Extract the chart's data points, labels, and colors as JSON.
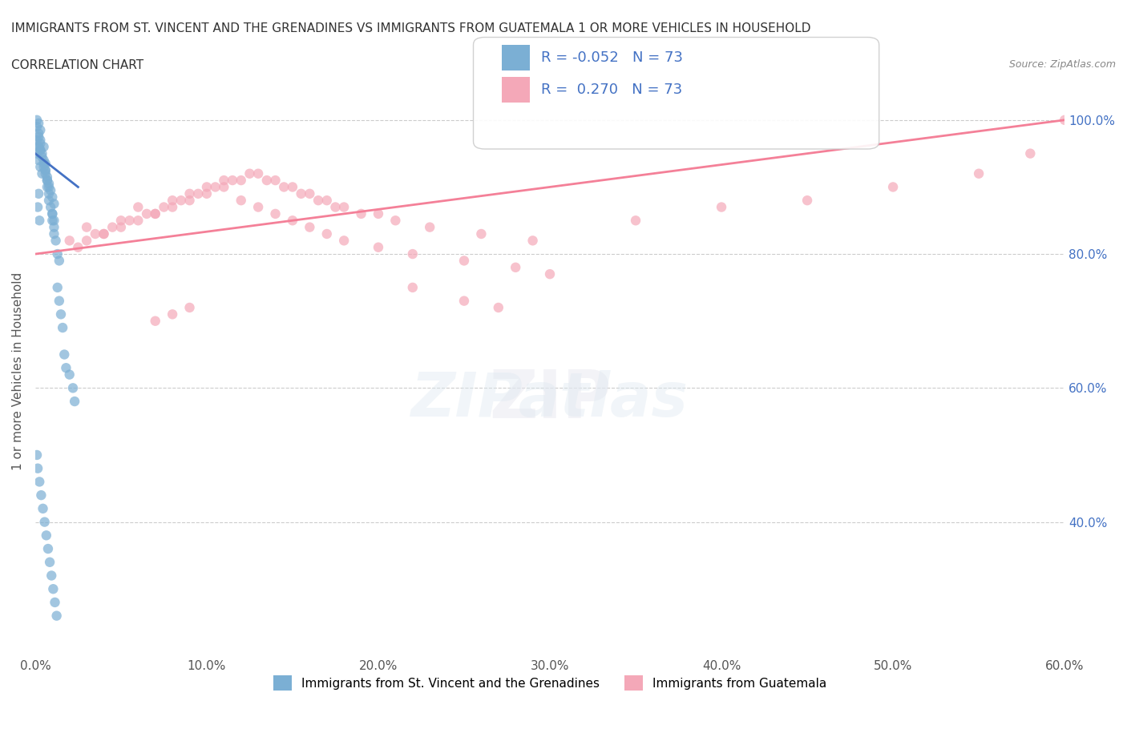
{
  "title_line1": "IMMIGRANTS FROM ST. VINCENT AND THE GRENADINES VS IMMIGRANTS FROM GUATEMALA 1 OR MORE VEHICLES IN HOUSEHOLD",
  "title_line2": "CORRELATION CHART",
  "source": "Source: ZipAtlas.com",
  "xlabel": "",
  "ylabel": "1 or more Vehicles in Household",
  "xlim": [
    0.0,
    60.0
  ],
  "ylim": [
    20.0,
    105.0
  ],
  "xticklabels": [
    "0.0%",
    "10.0%",
    "20.0%",
    "30.0%",
    "40.0%",
    "50.0%",
    "60.0%"
  ],
  "yticklabels_right": [
    "40.0%",
    "60.0%",
    "80.0%",
    "100.0%"
  ],
  "yticks_right": [
    40.0,
    60.0,
    80.0,
    100.0
  ],
  "color_blue": "#7bafd4",
  "color_pink": "#f4a8b8",
  "color_blue_line": "#4472c4",
  "color_pink_line": "#f48098",
  "color_grid": "#cccccc",
  "R_blue": -0.052,
  "N_blue": 73,
  "R_pink": 0.27,
  "N_pink": 73,
  "legend_label_blue": "Immigrants from St. Vincent and the Grenadines",
  "legend_label_pink": "Immigrants from Guatemala",
  "watermark": "ZIPatlas",
  "blue_scatter_x": [
    0.1,
    0.2,
    0.3,
    0.3,
    0.4,
    0.5,
    0.5,
    0.6,
    0.6,
    0.7,
    0.7,
    0.8,
    0.8,
    0.9,
    1.0,
    1.0,
    1.1,
    1.1,
    1.2,
    1.3,
    1.4,
    1.5,
    1.6,
    1.7,
    1.8,
    2.0,
    2.2,
    2.3,
    0.1,
    0.2,
    0.2,
    0.3,
    0.4,
    0.5,
    0.6,
    0.7,
    0.8,
    0.9,
    1.0,
    1.1,
    1.3,
    1.4,
    0.2,
    0.3,
    0.5,
    0.6,
    0.7,
    0.8,
    1.0,
    1.1,
    0.1,
    0.15,
    0.25,
    0.35,
    0.45,
    0.55,
    0.65,
    0.75,
    0.85,
    0.95,
    1.05,
    1.15,
    1.25,
    0.1,
    0.2,
    0.3,
    0.4,
    0.1,
    0.2,
    0.3,
    0.2,
    0.15,
    0.25
  ],
  "blue_scatter_y": [
    100.0,
    98.0,
    97.0,
    96.5,
    95.0,
    94.0,
    96.0,
    93.5,
    92.0,
    91.0,
    90.0,
    89.0,
    88.0,
    87.0,
    86.0,
    85.0,
    84.0,
    83.0,
    82.0,
    75.0,
    73.0,
    71.0,
    69.0,
    65.0,
    63.0,
    62.0,
    60.0,
    58.0,
    99.0,
    97.5,
    96.0,
    95.5,
    94.5,
    93.0,
    92.5,
    91.5,
    90.5,
    89.5,
    88.5,
    87.5,
    80.0,
    79.0,
    99.5,
    98.5,
    93.5,
    92.5,
    91.0,
    90.0,
    86.0,
    85.0,
    50.0,
    48.0,
    46.0,
    44.0,
    42.0,
    40.0,
    38.0,
    36.0,
    34.0,
    32.0,
    30.0,
    28.0,
    26.0,
    95.0,
    94.0,
    93.0,
    92.0,
    97.0,
    96.0,
    95.5,
    89.0,
    87.0,
    85.0
  ],
  "pink_scatter_x": [
    2.0,
    3.0,
    4.0,
    5.0,
    6.0,
    7.0,
    8.0,
    9.0,
    10.0,
    11.0,
    12.0,
    13.0,
    14.0,
    15.0,
    16.0,
    17.0,
    18.0,
    20.0,
    22.0,
    25.0,
    28.0,
    30.0,
    3.5,
    4.5,
    5.5,
    6.5,
    7.5,
    8.5,
    9.5,
    10.5,
    11.5,
    12.5,
    13.5,
    14.5,
    15.5,
    16.5,
    17.5,
    19.0,
    21.0,
    23.0,
    26.0,
    29.0,
    2.5,
    3.0,
    4.0,
    5.0,
    6.0,
    7.0,
    8.0,
    9.0,
    10.0,
    11.0,
    12.0,
    13.0,
    14.0,
    15.0,
    16.0,
    17.0,
    18.0,
    20.0,
    22.0,
    25.0,
    27.0,
    35.0,
    40.0,
    45.0,
    50.0,
    55.0,
    58.0,
    60.0,
    7.0,
    8.0,
    9.0
  ],
  "pink_scatter_y": [
    82.0,
    84.0,
    83.0,
    85.0,
    87.0,
    86.0,
    88.0,
    89.0,
    90.0,
    91.0,
    88.0,
    87.0,
    86.0,
    85.0,
    84.0,
    83.0,
    82.0,
    81.0,
    80.0,
    79.0,
    78.0,
    77.0,
    83.0,
    84.0,
    85.0,
    86.0,
    87.0,
    88.0,
    89.0,
    90.0,
    91.0,
    92.0,
    91.0,
    90.0,
    89.0,
    88.0,
    87.0,
    86.0,
    85.0,
    84.0,
    83.0,
    82.0,
    81.0,
    82.0,
    83.0,
    84.0,
    85.0,
    86.0,
    87.0,
    88.0,
    89.0,
    90.0,
    91.0,
    92.0,
    91.0,
    90.0,
    89.0,
    88.0,
    87.0,
    86.0,
    75.0,
    73.0,
    72.0,
    85.0,
    87.0,
    88.0,
    90.0,
    92.0,
    95.0,
    100.0,
    70.0,
    71.0,
    72.0
  ]
}
